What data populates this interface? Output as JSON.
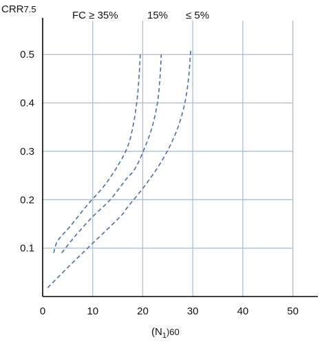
{
  "chart_data": {
    "type": "line",
    "xlabel": {
      "main": "(N",
      "sub": "1",
      "suffix": ")60"
    },
    "ylabel": {
      "main": "CRR",
      "sub": "7.5"
    },
    "xlim": [
      0,
      55
    ],
    "ylim": [
      0,
      0.57
    ],
    "xticks": [
      "0",
      "10",
      "20",
      "30",
      "40",
      "50"
    ],
    "yticks": [
      "0.1",
      "0.2",
      "0.3",
      "0.4",
      "0.5"
    ],
    "xtick_values": [
      0,
      10,
      20,
      30,
      40,
      50
    ],
    "ytick_values": [
      0.1,
      0.2,
      0.3,
      0.4,
      0.5
    ],
    "grid": true,
    "colors": {
      "curve": "#4a6da7",
      "grid": "#a9bcd9",
      "axis": "#000000"
    },
    "series": [
      {
        "name": "FC ≥ 35%",
        "line_style": "dashed",
        "points": [
          [
            2.2,
            0.09
          ],
          [
            3.0,
            0.115
          ],
          [
            5.5,
            0.145
          ],
          [
            9.0,
            0.19
          ],
          [
            12.0,
            0.225
          ],
          [
            14.7,
            0.265
          ],
          [
            17.0,
            0.31
          ],
          [
            18.2,
            0.36
          ],
          [
            18.9,
            0.41
          ],
          [
            19.3,
            0.46
          ],
          [
            19.5,
            0.5
          ]
        ]
      },
      {
        "name": "15%",
        "line_style": "dashed",
        "points": [
          [
            3.8,
            0.09
          ],
          [
            6.5,
            0.125
          ],
          [
            10.0,
            0.165
          ],
          [
            13.5,
            0.2
          ],
          [
            16.5,
            0.24
          ],
          [
            18.5,
            0.265
          ],
          [
            20.5,
            0.31
          ],
          [
            22.0,
            0.355
          ],
          [
            23.0,
            0.405
          ],
          [
            23.5,
            0.46
          ],
          [
            23.7,
            0.5
          ]
        ]
      },
      {
        "name": "≤ 5%",
        "line_style": "dashed",
        "points": [
          [
            1.0,
            0.018
          ],
          [
            5.0,
            0.06
          ],
          [
            10.0,
            0.11
          ],
          [
            15.5,
            0.165
          ],
          [
            17.0,
            0.185
          ],
          [
            20.5,
            0.23
          ],
          [
            23.8,
            0.28
          ],
          [
            26.5,
            0.335
          ],
          [
            28.2,
            0.39
          ],
          [
            29.1,
            0.445
          ],
          [
            29.6,
            0.51
          ]
        ]
      }
    ],
    "annotations": [
      {
        "text": "FC ≥ 35%"
      },
      {
        "text": "15%"
      },
      {
        "text": "≤ 5%"
      }
    ]
  }
}
